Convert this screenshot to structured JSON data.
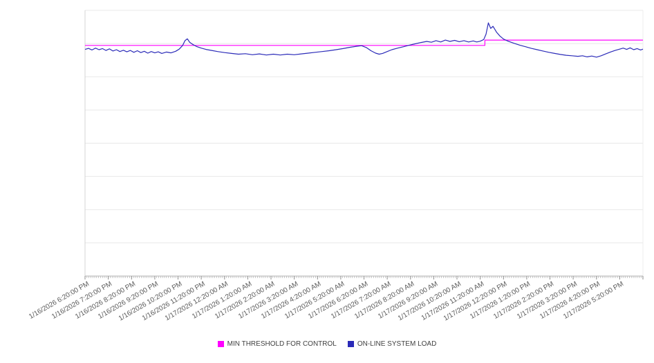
{
  "chart_data": {
    "type": "line",
    "title": "",
    "xlabel": "",
    "ylabel": "",
    "x_unit": "hours since first tick (1/16/2026 6:20:00 PM)",
    "x_range": [
      0,
      24
    ],
    "ylim": [
      0,
      100
    ],
    "y_axis": {
      "labels_visible": false,
      "gridlines": 8,
      "grid_color": "#e8e8e8",
      "axis_color": "#b3b3b3"
    },
    "legend_position": "bottom-center",
    "x_tick_labels": [
      "1/16/2026 6:20:00 PM",
      "1/16/2026 7:20:00 PM",
      "1/16/2026 8:20:00 PM",
      "1/16/2026 9:20:00 PM",
      "1/16/2026 10:20:00 PM",
      "1/16/2026 11:20:00 PM",
      "1/17/2026 12:20:00 AM",
      "1/17/2026 1:20:00 AM",
      "1/17/2026 2:20:00 AM",
      "1/17/2026 3:20:00 AM",
      "1/17/2026 4:20:00 AM",
      "1/17/2026 5:20:00 AM",
      "1/17/2026 6:20:00 AM",
      "1/17/2026 7:20:00 AM",
      "1/17/2026 8:20:00 AM",
      "1/17/2026 9:20:00 AM",
      "1/17/2026 10:20:00 AM",
      "1/17/2026 11:20:00 AM",
      "1/17/2026 12:20:00 PM",
      "1/17/2026 1:20:00 PM",
      "1/17/2026 2:20:00 PM",
      "1/17/2026 3:20:00 PM",
      "1/17/2026 4:20:00 PM",
      "1/17/2026 5:20:00 PM"
    ],
    "series": [
      {
        "name": "MIN THRESHOLD FOR CONTROL",
        "color": "#ff00ff",
        "points": [
          [
            0,
            86.8
          ],
          [
            17.2,
            86.8
          ],
          [
            17.2,
            88.8
          ],
          [
            24,
            88.8
          ]
        ]
      },
      {
        "name": "ON-LINE SYSTEM LOAD",
        "color": "#2a2ab8",
        "points": [
          [
            0,
            85.3
          ],
          [
            0.15,
            85.7
          ],
          [
            0.3,
            85.1
          ],
          [
            0.45,
            85.8
          ],
          [
            0.6,
            85.2
          ],
          [
            0.75,
            85.6
          ],
          [
            0.9,
            84.9
          ],
          [
            1.05,
            85.5
          ],
          [
            1.2,
            84.7
          ],
          [
            1.35,
            85.2
          ],
          [
            1.5,
            84.5
          ],
          [
            1.65,
            85.0
          ],
          [
            1.8,
            84.4
          ],
          [
            1.95,
            84.9
          ],
          [
            2.1,
            84.2
          ],
          [
            2.25,
            84.8
          ],
          [
            2.4,
            84.1
          ],
          [
            2.55,
            84.6
          ],
          [
            2.7,
            83.9
          ],
          [
            2.85,
            84.5
          ],
          [
            3.0,
            84.0
          ],
          [
            3.15,
            84.4
          ],
          [
            3.3,
            83.8
          ],
          [
            3.5,
            84.3
          ],
          [
            3.7,
            84.0
          ],
          [
            3.9,
            84.6
          ],
          [
            4.05,
            85.4
          ],
          [
            4.2,
            86.8
          ],
          [
            4.3,
            88.6
          ],
          [
            4.4,
            89.3
          ],
          [
            4.5,
            88.0
          ],
          [
            4.65,
            87.1
          ],
          [
            4.8,
            86.4
          ],
          [
            5.0,
            85.8
          ],
          [
            5.2,
            85.3
          ],
          [
            5.45,
            84.9
          ],
          [
            5.7,
            84.5
          ],
          [
            6.0,
            84.1
          ],
          [
            6.3,
            83.8
          ],
          [
            6.6,
            83.5
          ],
          [
            6.9,
            83.7
          ],
          [
            7.2,
            83.3
          ],
          [
            7.5,
            83.6
          ],
          [
            7.8,
            83.2
          ],
          [
            8.1,
            83.5
          ],
          [
            8.4,
            83.2
          ],
          [
            8.7,
            83.5
          ],
          [
            9.0,
            83.3
          ],
          [
            9.3,
            83.6
          ],
          [
            9.6,
            83.9
          ],
          [
            9.9,
            84.2
          ],
          [
            10.2,
            84.5
          ],
          [
            10.5,
            84.8
          ],
          [
            10.8,
            85.2
          ],
          [
            11.1,
            85.6
          ],
          [
            11.4,
            86.1
          ],
          [
            11.7,
            86.5
          ],
          [
            11.9,
            86.7
          ],
          [
            12.1,
            86.0
          ],
          [
            12.3,
            84.8
          ],
          [
            12.5,
            83.9
          ],
          [
            12.65,
            83.5
          ],
          [
            12.8,
            83.8
          ],
          [
            13.0,
            84.5
          ],
          [
            13.2,
            85.2
          ],
          [
            13.45,
            85.8
          ],
          [
            13.7,
            86.3
          ],
          [
            13.95,
            86.9
          ],
          [
            14.2,
            87.4
          ],
          [
            14.45,
            87.9
          ],
          [
            14.7,
            88.3
          ],
          [
            14.9,
            88.0
          ],
          [
            15.1,
            88.6
          ],
          [
            15.3,
            88.1
          ],
          [
            15.5,
            88.8
          ],
          [
            15.7,
            88.3
          ],
          [
            15.9,
            88.7
          ],
          [
            16.1,
            88.2
          ],
          [
            16.3,
            88.6
          ],
          [
            16.5,
            88.1
          ],
          [
            16.7,
            88.5
          ],
          [
            16.85,
            88.1
          ],
          [
            17.0,
            88.4
          ],
          [
            17.15,
            89.0
          ],
          [
            17.25,
            91.0
          ],
          [
            17.35,
            95.3
          ],
          [
            17.45,
            93.2
          ],
          [
            17.55,
            94.0
          ],
          [
            17.7,
            91.8
          ],
          [
            17.85,
            90.3
          ],
          [
            18.0,
            89.2
          ],
          [
            18.2,
            88.4
          ],
          [
            18.45,
            87.6
          ],
          [
            18.7,
            86.9
          ],
          [
            18.95,
            86.3
          ],
          [
            19.2,
            85.7
          ],
          [
            19.45,
            85.2
          ],
          [
            19.7,
            84.7
          ],
          [
            19.95,
            84.2
          ],
          [
            20.2,
            83.8
          ],
          [
            20.45,
            83.4
          ],
          [
            20.7,
            83.1
          ],
          [
            20.95,
            82.9
          ],
          [
            21.2,
            82.7
          ],
          [
            21.4,
            82.9
          ],
          [
            21.6,
            82.5
          ],
          [
            21.8,
            82.8
          ],
          [
            22.0,
            82.4
          ],
          [
            22.2,
            82.9
          ],
          [
            22.4,
            83.6
          ],
          [
            22.6,
            84.3
          ],
          [
            22.8,
            84.9
          ],
          [
            23.0,
            85.4
          ],
          [
            23.15,
            85.8
          ],
          [
            23.3,
            85.3
          ],
          [
            23.45,
            85.9
          ],
          [
            23.6,
            85.2
          ],
          [
            23.75,
            85.6
          ],
          [
            23.9,
            85.1
          ],
          [
            24.0,
            85.4
          ]
        ]
      }
    ],
    "legend": [
      "MIN THRESHOLD FOR CONTROL",
      "ON-LINE SYSTEM LOAD"
    ]
  }
}
